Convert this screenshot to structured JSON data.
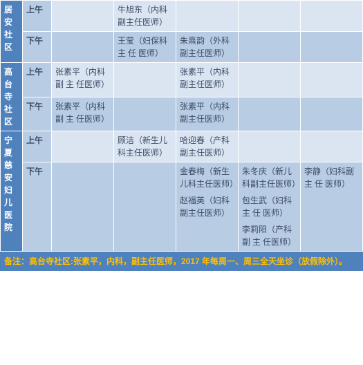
{
  "colors": {
    "header_bg": "#4f81bd",
    "band_a": "#dbe5f1",
    "band_b": "#b8cce4",
    "note_fg": "#ffc000",
    "text": "#3a4a66"
  },
  "periods": {
    "am": "上午",
    "pm": "下午"
  },
  "locations": [
    {
      "name": "居 安社区",
      "rows": [
        {
          "period": "am",
          "cells": [
            "",
            "牛旭东（内科副主任医师）",
            "",
            "",
            ""
          ]
        },
        {
          "period": "pm",
          "cells": [
            "",
            "王莹（妇保科 主 任 医师）",
            "朱熹韵（外科副主任医师）",
            "",
            ""
          ]
        }
      ]
    },
    {
      "name": "高 台寺 社区",
      "rows": [
        {
          "period": "am",
          "cells": [
            "张素平（内科副 主 任医师）",
            "",
            "张素平（内科副主任医师）",
            "",
            ""
          ]
        },
        {
          "period": "pm",
          "cells": [
            "张素平（内科副 主 任医师）",
            "",
            "张素平（内科副主任医师）",
            "",
            ""
          ]
        }
      ]
    },
    {
      "name": "宁 夏慈 安妇 儿医院",
      "rows": [
        {
          "period": "am",
          "cells": [
            "",
            "顾洁（新生儿科主任医师）",
            "哈迎春（产科副主任医师）",
            "",
            ""
          ]
        },
        {
          "period": "pm",
          "cells": [
            "",
            "",
            [
              "金春梅（新生儿科主任医师）",
              "赵福英（妇科副主任医师）"
            ],
            [
              "朱冬庆（新儿科副主任医师）",
              "包生武（妇科 主 任 医师）",
              "李莉阳（产科 副 主 任医师）"
            ],
            "李静（妇科副 主 任 医师）"
          ]
        }
      ]
    }
  ],
  "note": "备注：高台寺社区:张素平，内科，副主任医师，2017 年每周一、周三全天坐诊（放假除外）。"
}
